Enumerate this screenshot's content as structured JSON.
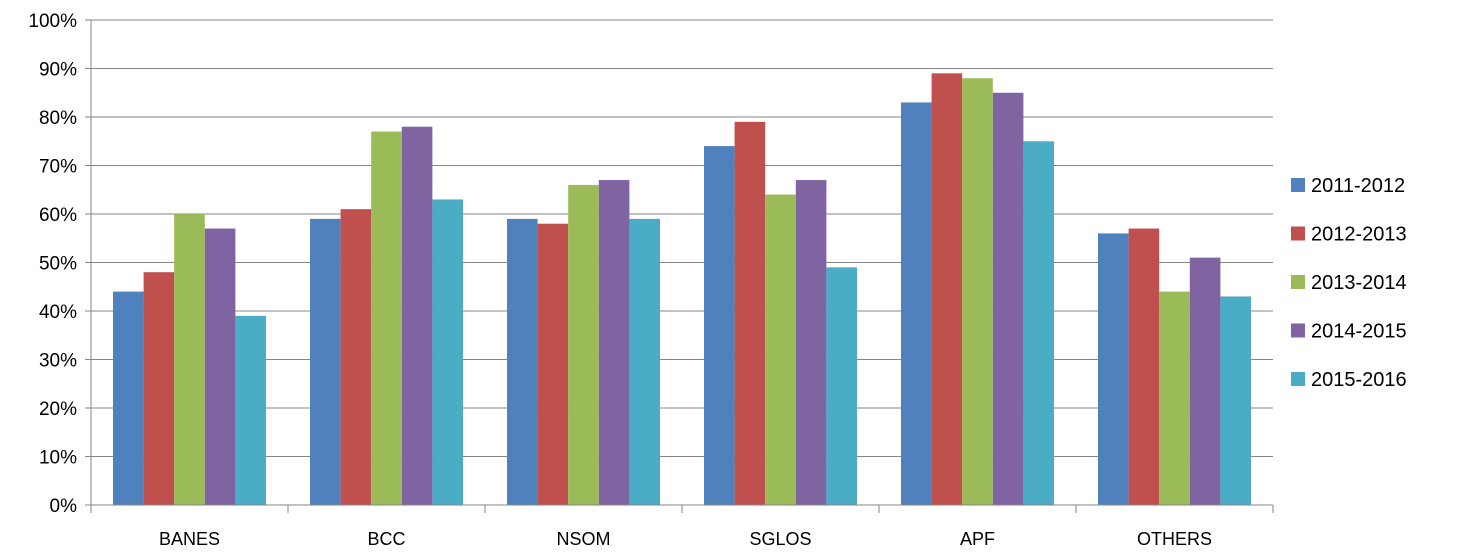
{
  "chart_data": {
    "type": "bar",
    "title": "",
    "xlabel": "",
    "ylabel": "",
    "ylim": [
      0,
      100
    ],
    "y_ticks": [
      0,
      10,
      20,
      30,
      40,
      50,
      60,
      70,
      80,
      90,
      100
    ],
    "y_tick_format": "{v}%",
    "grid": true,
    "legend_position": "right",
    "categories": [
      "BANES",
      "BCC",
      "NSOM",
      "SGLOS",
      "APF",
      "OTHERS"
    ],
    "series": [
      {
        "name": "2011-2012",
        "color": "#4F81BD",
        "values": [
          44,
          59,
          59,
          74,
          83,
          56
        ]
      },
      {
        "name": "2012-2013",
        "color": "#C0504D",
        "values": [
          48,
          61,
          58,
          79,
          89,
          57
        ]
      },
      {
        "name": "2013-2014",
        "color": "#9BBB59",
        "values": [
          60,
          77,
          66,
          64,
          88,
          44
        ]
      },
      {
        "name": "2014-2015",
        "color": "#8064A2",
        "values": [
          57,
          78,
          67,
          67,
          85,
          51
        ]
      },
      {
        "name": "2015-2016",
        "color": "#4BACC6",
        "values": [
          39,
          63,
          59,
          49,
          75,
          43
        ]
      }
    ]
  }
}
